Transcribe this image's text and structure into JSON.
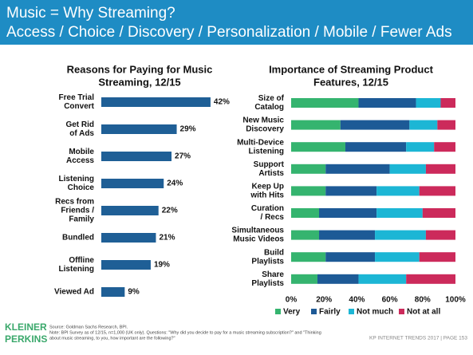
{
  "header": {
    "title_lines": [
      "Music = Why Streaming?",
      "Access / Choice / Discovery / Personalization / Mobile / Fewer Ads"
    ]
  },
  "chart_data": [
    {
      "type": "bar",
      "title_lines": [
        "Reasons for Paying for Music",
        "Streaming, 12/15"
      ],
      "categories": [
        [
          "Free Trial",
          "Convert"
        ],
        [
          "Get Rid",
          "of Ads"
        ],
        [
          "Mobile",
          "Access"
        ],
        [
          "Listening",
          "Choice"
        ],
        [
          "Recs from",
          "Friends /",
          "Family"
        ],
        [
          "Bundled"
        ],
        [
          "Offline",
          "Listening"
        ],
        [
          "Viewed Ad"
        ]
      ],
      "values": [
        42,
        29,
        27,
        24,
        22,
        21,
        19,
        9
      ],
      "value_labels": [
        "42%",
        "29%",
        "27%",
        "24%",
        "22%",
        "21%",
        "19%",
        "9%"
      ],
      "color": "#1f5f96"
    },
    {
      "type": "stacked_bar",
      "title_lines": [
        "Importance of Streaming Product",
        "Features, 12/15"
      ],
      "categories": [
        [
          "Size of",
          "Catalog"
        ],
        [
          "New Music",
          "Discovery"
        ],
        [
          "Multi-Device",
          "Listening"
        ],
        [
          "Support",
          "Artists"
        ],
        [
          "Keep Up",
          "with Hits"
        ],
        [
          "Curation",
          "/ Recs"
        ],
        [
          "Simultaneous",
          "Music Videos"
        ],
        [
          "Build",
          "Playlists"
        ],
        [
          "Share",
          "Playlists"
        ]
      ],
      "series": [
        {
          "name": "Very",
          "color": "#35b46f",
          "values": [
            41,
            30,
            33,
            21,
            21,
            17,
            17,
            21,
            16
          ]
        },
        {
          "name": "Fairly",
          "color": "#1d5a96",
          "values": [
            35,
            42,
            37,
            39,
            31,
            35,
            34,
            30,
            25
          ]
        },
        {
          "name": "Not much",
          "color": "#1cb6d5",
          "values": [
            15,
            17,
            17,
            22,
            26,
            28,
            31,
            27,
            29
          ]
        },
        {
          "name": "Not at all",
          "color": "#cc2a5b",
          "values": [
            9,
            11,
            13,
            18,
            22,
            20,
            18,
            22,
            30
          ]
        }
      ],
      "xlim": [
        0,
        100
      ],
      "xticks": [
        {
          "value": 0,
          "label": "0%"
        },
        {
          "value": 20,
          "label": "20%"
        },
        {
          "value": 40,
          "label": "40%"
        },
        {
          "value": 60,
          "label": "60%"
        },
        {
          "value": 80,
          "label": "80%"
        },
        {
          "value": 100,
          "label": "100%"
        }
      ]
    }
  ],
  "footer": {
    "logo": [
      "KLEINER",
      "PERKINS"
    ],
    "note_lines": [
      "Source: Goldman Sachs Research, BPI.",
      "Note: BPI Survey as of 12/15, n=1,000 (UK only). Questions: \"Why did you decide to pay for a music streaming subscription?\" and \"Thinking",
      "about music streaming, to you, how important are the following?\""
    ],
    "page": "KP INTERNET TRENDS 2017  |  PAGE 153"
  }
}
